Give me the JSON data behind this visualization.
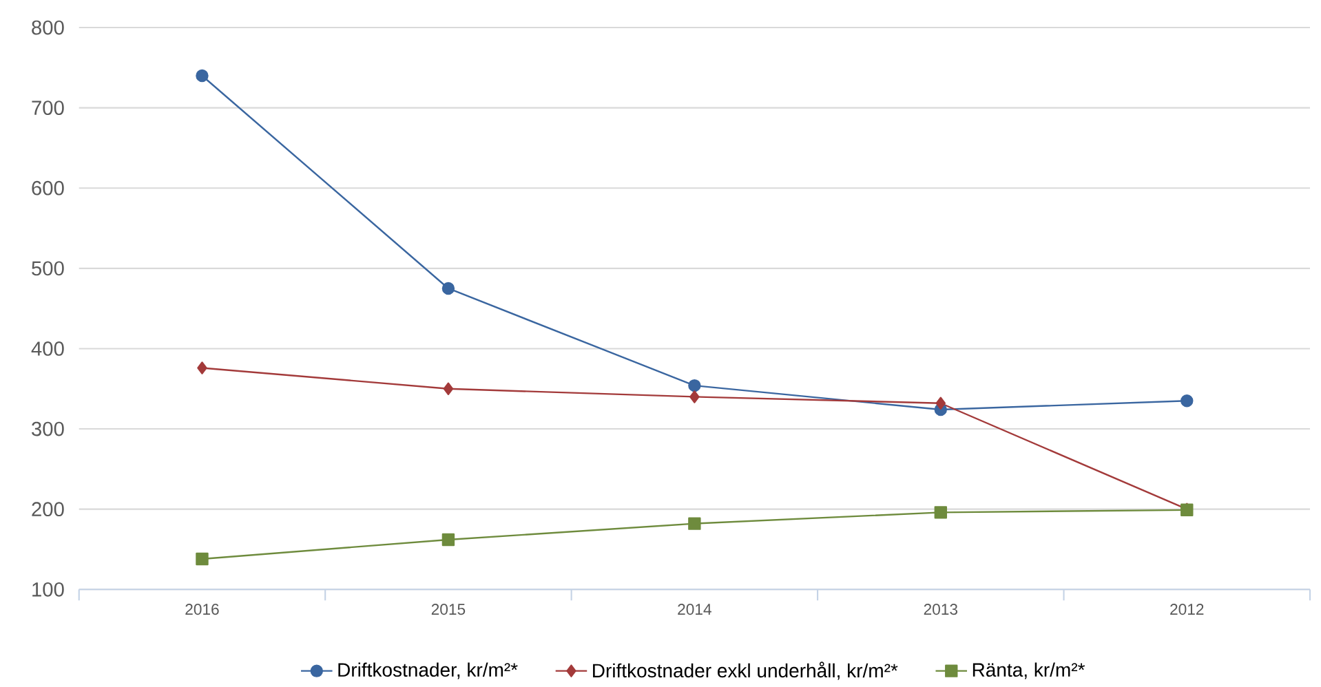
{
  "chart_data": {
    "type": "line",
    "categories": [
      "2016",
      "2015",
      "2014",
      "2013",
      "2012"
    ],
    "series": [
      {
        "name": "Driftkostnader, kr/m²*",
        "color": "#3a66a0",
        "marker": "circle",
        "values": [
          740,
          475,
          354,
          324,
          335
        ]
      },
      {
        "name": "Driftkostnader exkl underhåll, kr/m²*",
        "color": "#a33a3a",
        "marker": "diamond",
        "values": [
          376,
          350,
          340,
          332,
          200
        ]
      },
      {
        "name": "Ränta, kr/m²*",
        "color": "#6e8b3d",
        "marker": "square",
        "values": [
          138,
          162,
          182,
          196,
          199
        ]
      }
    ],
    "ylim": [
      100,
      800
    ],
    "yticks": [
      100,
      200,
      300,
      400,
      500,
      600,
      700,
      800
    ],
    "grid": "y",
    "legend": "bottom"
  }
}
